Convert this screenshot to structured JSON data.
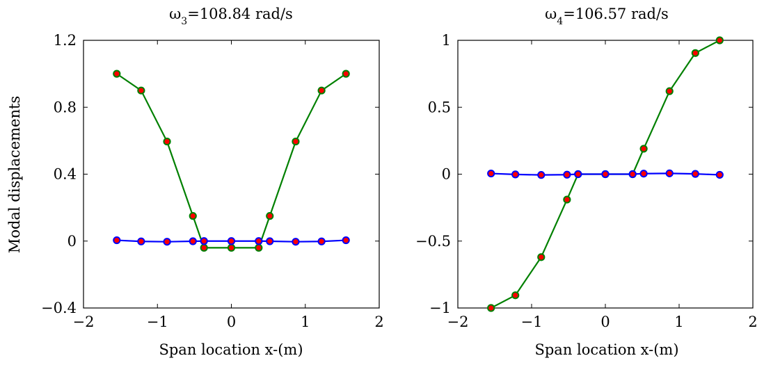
{
  "chart_data": [
    {
      "type": "line",
      "title_prefix": "ω",
      "title_sub": "3",
      "title_suffix": "=108.84 rad/s",
      "xlabel": "Span location x-(m)",
      "ylabel": "Modal displacements",
      "xlim": [
        -2,
        2
      ],
      "ylim": [
        -0.4,
        1.2
      ],
      "xticks": [
        -2,
        -1,
        0,
        1,
        2
      ],
      "xtick_labels": [
        "−2",
        "−1",
        "0",
        "1",
        "2"
      ],
      "yticks": [
        -0.4,
        0,
        0.4,
        0.8,
        1.2
      ],
      "ytick_labels": [
        "−0.4",
        "0",
        "0.4",
        "0.8",
        "1.2"
      ],
      "series": [
        {
          "color": "#008000",
          "marker_color": "#ff0000",
          "x": [
            -1.55,
            -1.22,
            -0.87,
            -0.52,
            -0.37,
            0,
            0.37,
            0.52,
            0.87,
            1.22,
            1.55
          ],
          "y": [
            1.0,
            0.9,
            0.595,
            0.15,
            -0.04,
            -0.04,
            -0.04,
            0.15,
            0.595,
            0.9,
            1.0
          ]
        },
        {
          "color": "#0000ff",
          "marker_color": "#ff0000",
          "x": [
            -1.55,
            -1.22,
            -0.87,
            -0.52,
            -0.37,
            0,
            0.37,
            0.52,
            0.87,
            1.22,
            1.55
          ],
          "y": [
            0.005,
            -0.002,
            -0.004,
            -0.001,
            0.0,
            0.0,
            0.0,
            -0.001,
            -0.004,
            -0.002,
            0.005
          ]
        }
      ]
    },
    {
      "type": "line",
      "title_prefix": "ω",
      "title_sub": "4",
      "title_suffix": "=106.57 rad/s",
      "xlabel": "Span location x-(m)",
      "ylabel": "",
      "xlim": [
        -2,
        2
      ],
      "ylim": [
        -1,
        1
      ],
      "xticks": [
        -2,
        -1,
        0,
        1,
        2
      ],
      "xtick_labels": [
        "−2",
        "−1",
        "0",
        "1",
        "2"
      ],
      "yticks": [
        -1,
        -0.5,
        0,
        0.5,
        1
      ],
      "ytick_labels": [
        "−1",
        "−0.5",
        "0",
        "0.5",
        "1"
      ],
      "series": [
        {
          "color": "#008000",
          "marker_color": "#ff0000",
          "x": [
            -1.55,
            -1.22,
            -0.87,
            -0.52,
            -0.37,
            0,
            0.37,
            0.52,
            0.87,
            1.22,
            1.55
          ],
          "y": [
            -1.0,
            -0.905,
            -0.62,
            -0.19,
            0.0,
            0.0,
            0.0,
            0.19,
            0.62,
            0.905,
            1.0
          ]
        },
        {
          "color": "#0000ff",
          "marker_color": "#ff0000",
          "x": [
            -1.55,
            -1.22,
            -0.87,
            -0.52,
            -0.37,
            0,
            0.37,
            0.52,
            0.87,
            1.22,
            1.55
          ],
          "y": [
            0.005,
            -0.002,
            -0.006,
            -0.004,
            0.0,
            0.0,
            0.0,
            0.004,
            0.006,
            0.002,
            -0.005
          ]
        }
      ]
    }
  ]
}
